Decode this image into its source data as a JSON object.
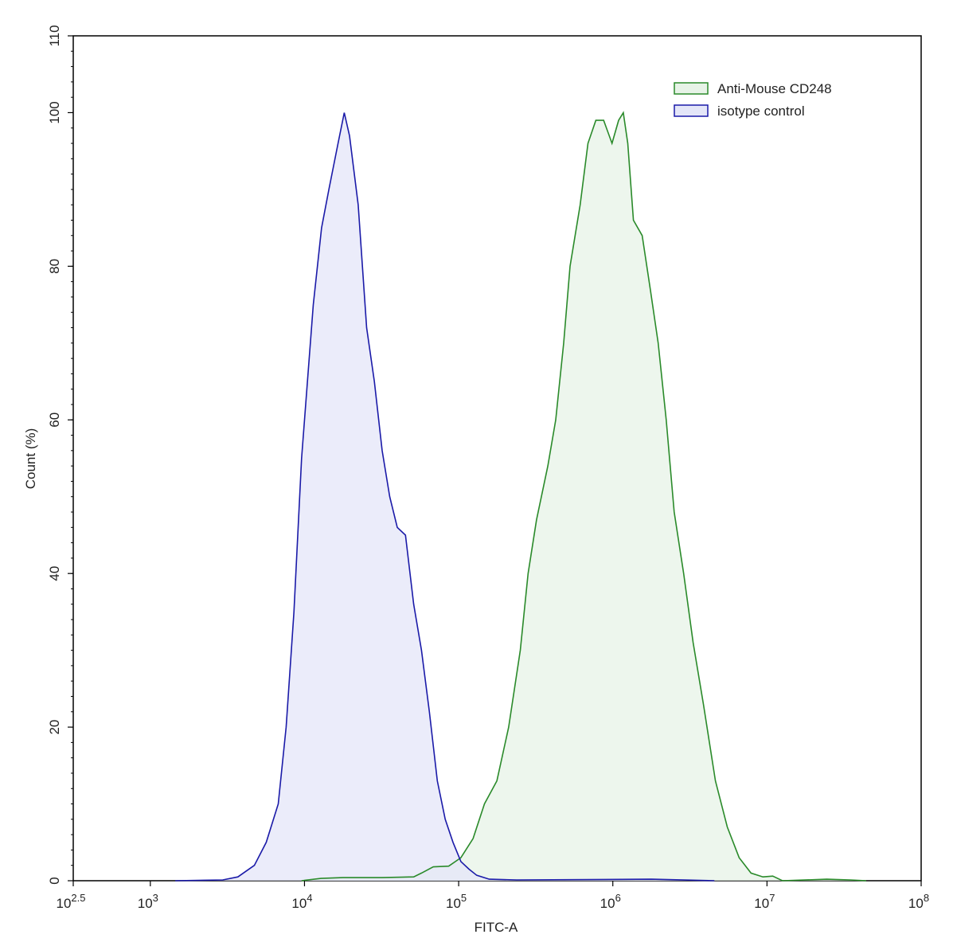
{
  "chart_data": {
    "type": "histogram-overlay",
    "x_label": "FITC-A",
    "y_label": "Count  (%)",
    "xscale": "log",
    "xlim": [
      316.23,
      100000000
    ],
    "ylim": [
      0,
      110
    ],
    "xticks": [
      {
        "value": 316.23,
        "label": "10",
        "exponent": "2.5"
      },
      {
        "value": 1000,
        "label": "10",
        "exponent": "3"
      },
      {
        "value": 10000,
        "label": "10",
        "exponent": "4"
      },
      {
        "value": 100000,
        "label": "10",
        "exponent": "5"
      },
      {
        "value": 1000000,
        "label": "10",
        "exponent": "6"
      },
      {
        "value": 10000000,
        "label": "10",
        "exponent": "7"
      },
      {
        "value": 100000000,
        "label": "10",
        "exponent": "8"
      }
    ],
    "yticks": [
      0,
      20,
      40,
      60,
      80,
      100,
      110
    ],
    "legend": "upper right",
    "series": [
      {
        "name": "Anti-Mouse CD248",
        "color": "#2a8a2a",
        "fill": "#e7f3e7",
        "x": [
          9580,
          12800,
          17800,
          31900,
          51100,
          57400,
          68400,
          86200,
          103400,
          124000,
          147000,
          177000,
          211000,
          251000,
          282000,
          320000,
          379000,
          426000,
          480000,
          528000,
          614000,
          690000,
          776000,
          872000,
          988000,
          1090000,
          1170000,
          1250000,
          1360000,
          1550000,
          1750000,
          1970000,
          2220000,
          2500000,
          2880000,
          3320000,
          3870000,
          4630000,
          5530000,
          6600000,
          7880000,
          9420000,
          10900000,
          12600000,
          24400000,
          34700000,
          44000000
        ],
        "values": [
          0,
          0.3,
          0.4,
          0.4,
          0.5,
          1,
          1.8,
          1.9,
          3,
          5.5,
          10,
          13,
          20,
          30,
          40,
          47,
          54,
          60,
          70,
          80,
          88,
          96,
          99,
          99,
          96,
          99,
          100,
          96,
          86,
          84,
          77,
          70,
          60,
          48,
          40,
          31,
          23,
          13,
          7,
          3,
          1,
          0.5,
          0.6,
          0,
          0.2,
          0.1,
          0
        ]
      },
      {
        "name": "isotype control",
        "color": "#1a1aa8",
        "fill": "#e4e6f8",
        "x": [
          1450,
          2950,
          3700,
          4730,
          5650,
          6760,
          7600,
          8540,
          9580,
          11400,
          12900,
          14400,
          16500,
          18100,
          19600,
          22300,
          25300,
          28400,
          31900,
          35700,
          40000,
          45200,
          51100,
          57400,
          64600,
          72700,
          81800,
          91900,
          103400,
          116700,
          131000,
          157800,
          238000,
          1780000,
          4560000
        ],
        "values": [
          0,
          0.1,
          0.5,
          2,
          5,
          10,
          20,
          35,
          55,
          75,
          85,
          90,
          96,
          100,
          97,
          88,
          72,
          65,
          56,
          50,
          46,
          45,
          36,
          30,
          22,
          13,
          8,
          5,
          2.5,
          1.5,
          0.7,
          0.2,
          0.1,
          0.2,
          0
        ]
      }
    ]
  }
}
